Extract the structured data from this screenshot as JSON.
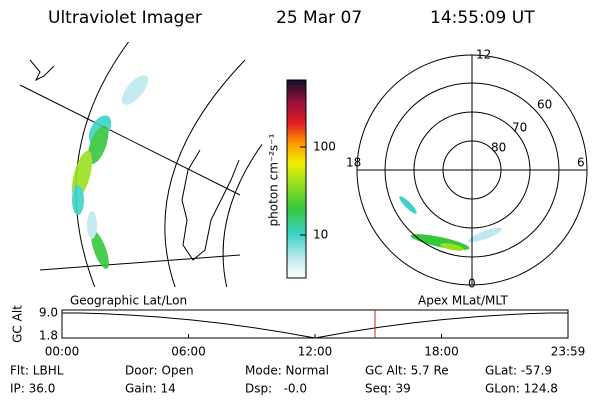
{
  "header": {
    "title": "Ultraviolet Imager",
    "date": "25 Mar 07",
    "time": "14:55:09 UT"
  },
  "geographic_panel": {
    "label": "Geographic Lat/Lon"
  },
  "polar_panel": {
    "label": "Apex MLat/MLT",
    "mlt_labels": [
      "12",
      "18",
      "6",
      "0"
    ],
    "mlat_labels": [
      "60",
      "70",
      "80"
    ]
  },
  "colorbar": {
    "unit_label": "photon cm⁻²s⁻¹",
    "ticks": [
      "100",
      "10"
    ]
  },
  "altitude_plot": {
    "y_label": "GC Alt",
    "y_ticks": [
      "9.0",
      "1.8"
    ],
    "x_ticks": [
      "00:00",
      "06:00",
      "12:00",
      "18:00",
      "23:59"
    ]
  },
  "status": {
    "rows": [
      [
        "Flt: LBHL",
        "Door: Open",
        "Mode: Normal",
        "GC Alt: 5.7 Re",
        "GLat: -57.9"
      ],
      [
        "IP: 36.0",
        "Gain: 14",
        "Dsp:   -0.0",
        "Seq: 39",
        "GLon: 124.8"
      ]
    ]
  }
}
